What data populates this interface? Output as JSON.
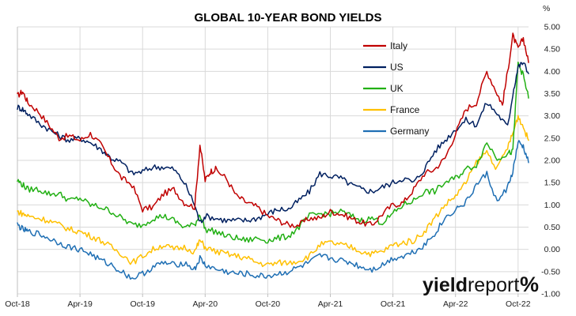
{
  "chart_data": {
    "type": "line",
    "title": "GLOBAL 10-YEAR BOND YIELDS",
    "y_unit": "%",
    "ylim": [
      -1.0,
      5.0
    ],
    "y_ticks": [
      "5.00",
      "4.50",
      "4.00",
      "3.50",
      "3.00",
      "2.50",
      "2.00",
      "1.50",
      "1.00",
      "0.50",
      "0.00",
      "-0.50",
      "-1.00"
    ],
    "y_tick_values": [
      5.0,
      4.5,
      4.0,
      3.5,
      3.0,
      2.5,
      2.0,
      1.5,
      1.0,
      0.5,
      0.0,
      -0.5,
      -1.0
    ],
    "x_ticks": [
      "Oct-18",
      "Apr-19",
      "Oct-19",
      "Apr-20",
      "Oct-20",
      "Apr-21",
      "Oct-21",
      "Apr-22",
      "Oct-22"
    ],
    "x_tick_values": [
      0,
      6,
      12,
      18,
      24,
      30,
      36,
      42,
      48
    ],
    "x_unit_note": "months",
    "xlim": [
      0,
      49
    ],
    "grid": true,
    "legend_position": "top-center",
    "series": [
      {
        "name": "Italy",
        "color": "#c00000",
        "x": [
          0,
          0.5,
          1,
          2,
          3,
          4,
          5,
          6,
          7,
          8,
          9,
          10,
          11,
          12,
          13,
          14,
          15,
          16,
          17,
          17.5,
          18,
          18.5,
          19,
          20,
          21,
          22,
          23,
          24,
          25,
          26,
          27,
          28,
          29,
          30,
          31,
          32,
          33,
          34,
          35,
          36,
          37,
          38,
          39,
          40,
          41,
          42,
          43,
          44,
          45,
          46,
          46.5,
          47,
          47.5,
          48,
          48.5,
          49
        ],
        "values": [
          3.45,
          3.55,
          3.3,
          3.1,
          2.8,
          2.5,
          2.55,
          2.45,
          2.6,
          2.35,
          1.95,
          1.6,
          1.45,
          0.9,
          0.95,
          1.25,
          1.35,
          1.05,
          0.95,
          2.35,
          1.55,
          1.75,
          1.8,
          1.6,
          1.2,
          1.05,
          0.95,
          0.75,
          0.65,
          0.55,
          0.55,
          0.7,
          0.7,
          0.85,
          0.8,
          0.7,
          0.6,
          0.55,
          0.8,
          1.0,
          1.05,
          1.35,
          1.7,
          1.8,
          2.05,
          2.6,
          3.15,
          3.3,
          4.0,
          3.5,
          3.25,
          4.0,
          4.8,
          4.5,
          4.75,
          4.2
        ]
      },
      {
        "name": "US",
        "color": "#002060",
        "x": [
          0,
          0.5,
          1,
          2,
          3,
          4,
          5,
          6,
          7,
          8,
          9,
          10,
          11,
          12,
          13,
          14,
          15,
          16,
          17,
          17.5,
          18,
          19,
          20,
          21,
          22,
          23,
          24,
          25,
          26,
          27,
          28,
          29,
          30,
          31,
          32,
          33,
          34,
          35,
          36,
          37,
          38,
          39,
          40,
          41,
          42,
          43,
          44,
          45,
          46,
          47,
          47.5,
          48,
          48.5,
          49
        ],
        "values": [
          3.2,
          3.15,
          3.05,
          2.85,
          2.7,
          2.55,
          2.45,
          2.5,
          2.4,
          2.25,
          2.05,
          1.95,
          1.7,
          1.75,
          1.85,
          1.85,
          1.8,
          1.5,
          1.0,
          0.6,
          0.75,
          0.7,
          0.65,
          0.65,
          0.65,
          0.7,
          0.8,
          0.9,
          0.9,
          1.1,
          1.3,
          1.7,
          1.65,
          1.6,
          1.45,
          1.35,
          1.3,
          1.4,
          1.5,
          1.6,
          1.5,
          1.8,
          2.2,
          2.45,
          2.7,
          2.9,
          2.8,
          3.3,
          3.05,
          2.75,
          3.5,
          4.1,
          4.2,
          3.95
        ]
      },
      {
        "name": "UK",
        "color": "#22b014",
        "x": [
          0,
          0.5,
          1,
          2,
          3,
          4,
          5,
          6,
          7,
          8,
          9,
          10,
          11,
          12,
          13,
          14,
          15,
          16,
          17,
          17.5,
          18,
          19,
          20,
          21,
          22,
          23,
          24,
          25,
          26,
          27,
          28,
          29,
          30,
          31,
          32,
          33,
          34,
          35,
          36,
          37,
          38,
          39,
          40,
          41,
          42,
          43,
          44,
          45,
          46,
          47,
          47.5,
          48,
          48.5,
          49
        ],
        "values": [
          1.55,
          1.45,
          1.35,
          1.35,
          1.25,
          1.25,
          1.1,
          1.15,
          1.0,
          0.95,
          0.85,
          0.7,
          0.55,
          0.55,
          0.7,
          0.75,
          0.65,
          0.5,
          0.55,
          0.8,
          0.45,
          0.4,
          0.3,
          0.25,
          0.2,
          0.25,
          0.2,
          0.25,
          0.3,
          0.5,
          0.75,
          0.8,
          0.8,
          0.85,
          0.75,
          0.65,
          0.7,
          0.6,
          0.8,
          1.0,
          1.1,
          1.3,
          1.3,
          1.5,
          1.6,
          1.8,
          1.9,
          2.4,
          2.05,
          2.15,
          2.2,
          4.2,
          3.9,
          3.4
        ]
      },
      {
        "name": "France",
        "color": "#ffc000",
        "x": [
          0,
          0.5,
          1,
          2,
          3,
          4,
          5,
          6,
          7,
          8,
          9,
          10,
          11,
          12,
          13,
          14,
          15,
          16,
          17,
          17.5,
          18,
          19,
          20,
          21,
          22,
          23,
          24,
          25,
          26,
          27,
          28,
          29,
          30,
          31,
          32,
          33,
          34,
          35,
          36,
          37,
          38,
          39,
          40,
          41,
          42,
          43,
          44,
          45,
          46,
          47,
          47.5,
          48,
          48.5,
          49
        ],
        "values": [
          0.85,
          0.8,
          0.75,
          0.7,
          0.65,
          0.55,
          0.45,
          0.4,
          0.3,
          0.2,
          0.05,
          -0.1,
          -0.3,
          -0.15,
          0.0,
          0.1,
          0.0,
          0.05,
          -0.05,
          0.2,
          0.05,
          -0.05,
          -0.1,
          -0.15,
          -0.2,
          -0.3,
          -0.35,
          -0.3,
          -0.3,
          -0.25,
          -0.15,
          0.1,
          0.15,
          0.1,
          0.05,
          -0.05,
          -0.1,
          -0.05,
          0.1,
          0.15,
          0.2,
          0.4,
          0.7,
          1.0,
          1.2,
          1.5,
          1.95,
          2.2,
          1.8,
          2.3,
          2.6,
          3.0,
          2.75,
          2.45
        ]
      },
      {
        "name": "Germany",
        "color": "#1f6fb4",
        "x": [
          0,
          0.5,
          1,
          2,
          3,
          4,
          5,
          6,
          7,
          8,
          9,
          10,
          11,
          12,
          13,
          14,
          15,
          16,
          17,
          17.5,
          18,
          19,
          20,
          21,
          22,
          23,
          24,
          25,
          26,
          27,
          28,
          29,
          30,
          31,
          32,
          33,
          34,
          35,
          36,
          37,
          38,
          39,
          40,
          41,
          42,
          43,
          44,
          45,
          46,
          47,
          47.5,
          48,
          48.5,
          49
        ],
        "values": [
          0.55,
          0.45,
          0.4,
          0.35,
          0.25,
          0.15,
          0.05,
          0.0,
          -0.1,
          -0.25,
          -0.35,
          -0.5,
          -0.65,
          -0.55,
          -0.4,
          -0.3,
          -0.35,
          -0.3,
          -0.45,
          -0.2,
          -0.35,
          -0.45,
          -0.5,
          -0.55,
          -0.55,
          -0.6,
          -0.6,
          -0.55,
          -0.5,
          -0.4,
          -0.3,
          -0.15,
          -0.2,
          -0.25,
          -0.3,
          -0.4,
          -0.45,
          -0.35,
          -0.2,
          -0.15,
          -0.05,
          0.1,
          0.35,
          0.7,
          0.9,
          1.05,
          1.45,
          1.7,
          1.05,
          1.4,
          1.75,
          2.4,
          2.3,
          1.95
        ]
      }
    ]
  },
  "logo": {
    "part1": "yield",
    "part2": "report",
    "mark": "%"
  }
}
